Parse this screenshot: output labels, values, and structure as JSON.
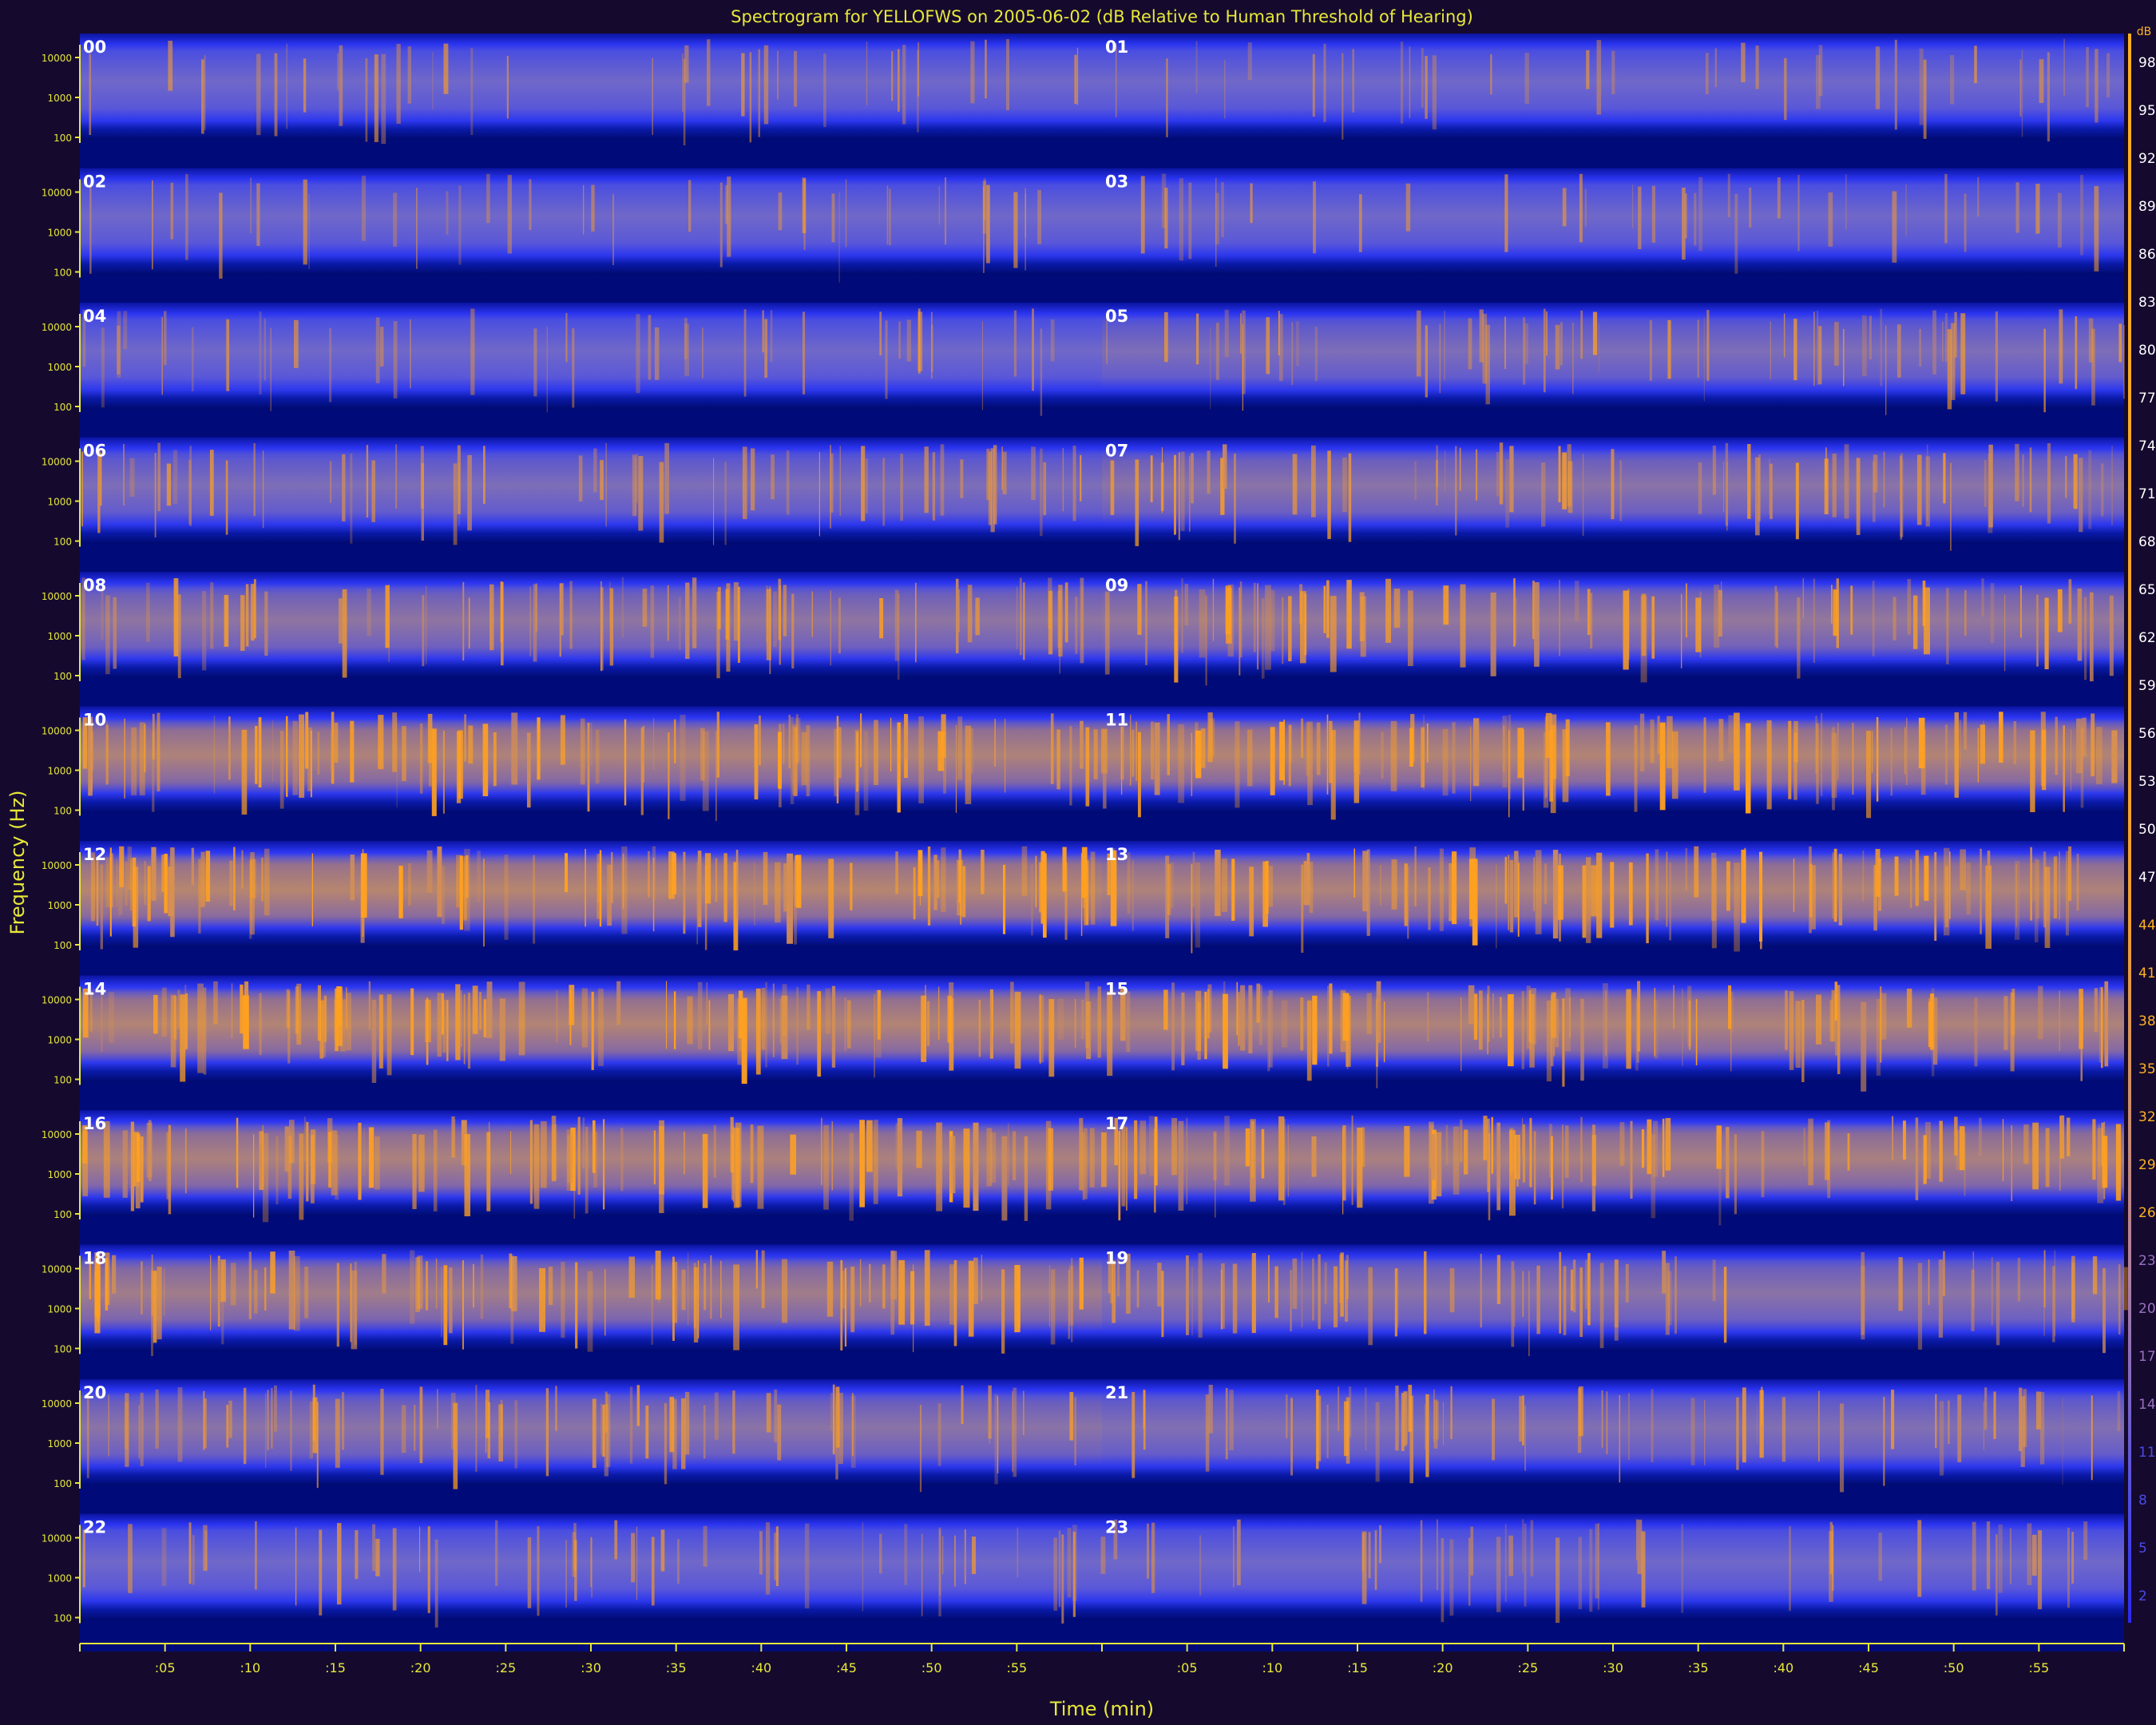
{
  "chart_data": {
    "type": "heatmap",
    "title": "Spectrogram for YELLOFWS on 2005-06-02 (dB Relative to Human Threshold of Hearing)",
    "xlabel": "Time (min)",
    "ylabel": "Frequency (Hz)",
    "y_ticks": [
      "10000",
      "1000",
      "100"
    ],
    "x_ticks": [
      ":05",
      ":10",
      ":15",
      ":20",
      ":25",
      ":30",
      ":35",
      ":40",
      ":45",
      ":50",
      ":55"
    ],
    "colorbar_ticks": [
      98,
      95,
      92,
      89,
      86,
      83,
      80,
      77,
      74,
      71,
      68,
      65,
      62,
      59,
      56,
      53,
      50,
      47,
      44,
      41,
      38,
      35,
      32,
      29,
      26,
      23,
      20,
      17,
      14,
      11,
      8,
      5,
      2
    ],
    "colorbar_unit": "dB",
    "hours": [
      "00",
      "01",
      "02",
      "03",
      "04",
      "05",
      "06",
      "07",
      "08",
      "09",
      "10",
      "11",
      "12",
      "13",
      "14",
      "15",
      "16",
      "17",
      "18",
      "19",
      "20",
      "21",
      "22",
      "23"
    ],
    "hour_activity": [
      0.22,
      0.2,
      0.22,
      0.2,
      0.26,
      0.45,
      0.45,
      0.55,
      0.58,
      0.62,
      0.82,
      0.85,
      0.88,
      0.82,
      0.85,
      0.82,
      0.8,
      0.78,
      0.72,
      0.55,
      0.55,
      0.48,
      0.35,
      0.28
    ],
    "colors": {
      "background": "#150a2e",
      "axis": "#e8e838",
      "label_text": "#ffffff",
      "dark_band": "#000a78",
      "mid_band": "#1a22dd",
      "bright": "#ff9e10"
    }
  }
}
